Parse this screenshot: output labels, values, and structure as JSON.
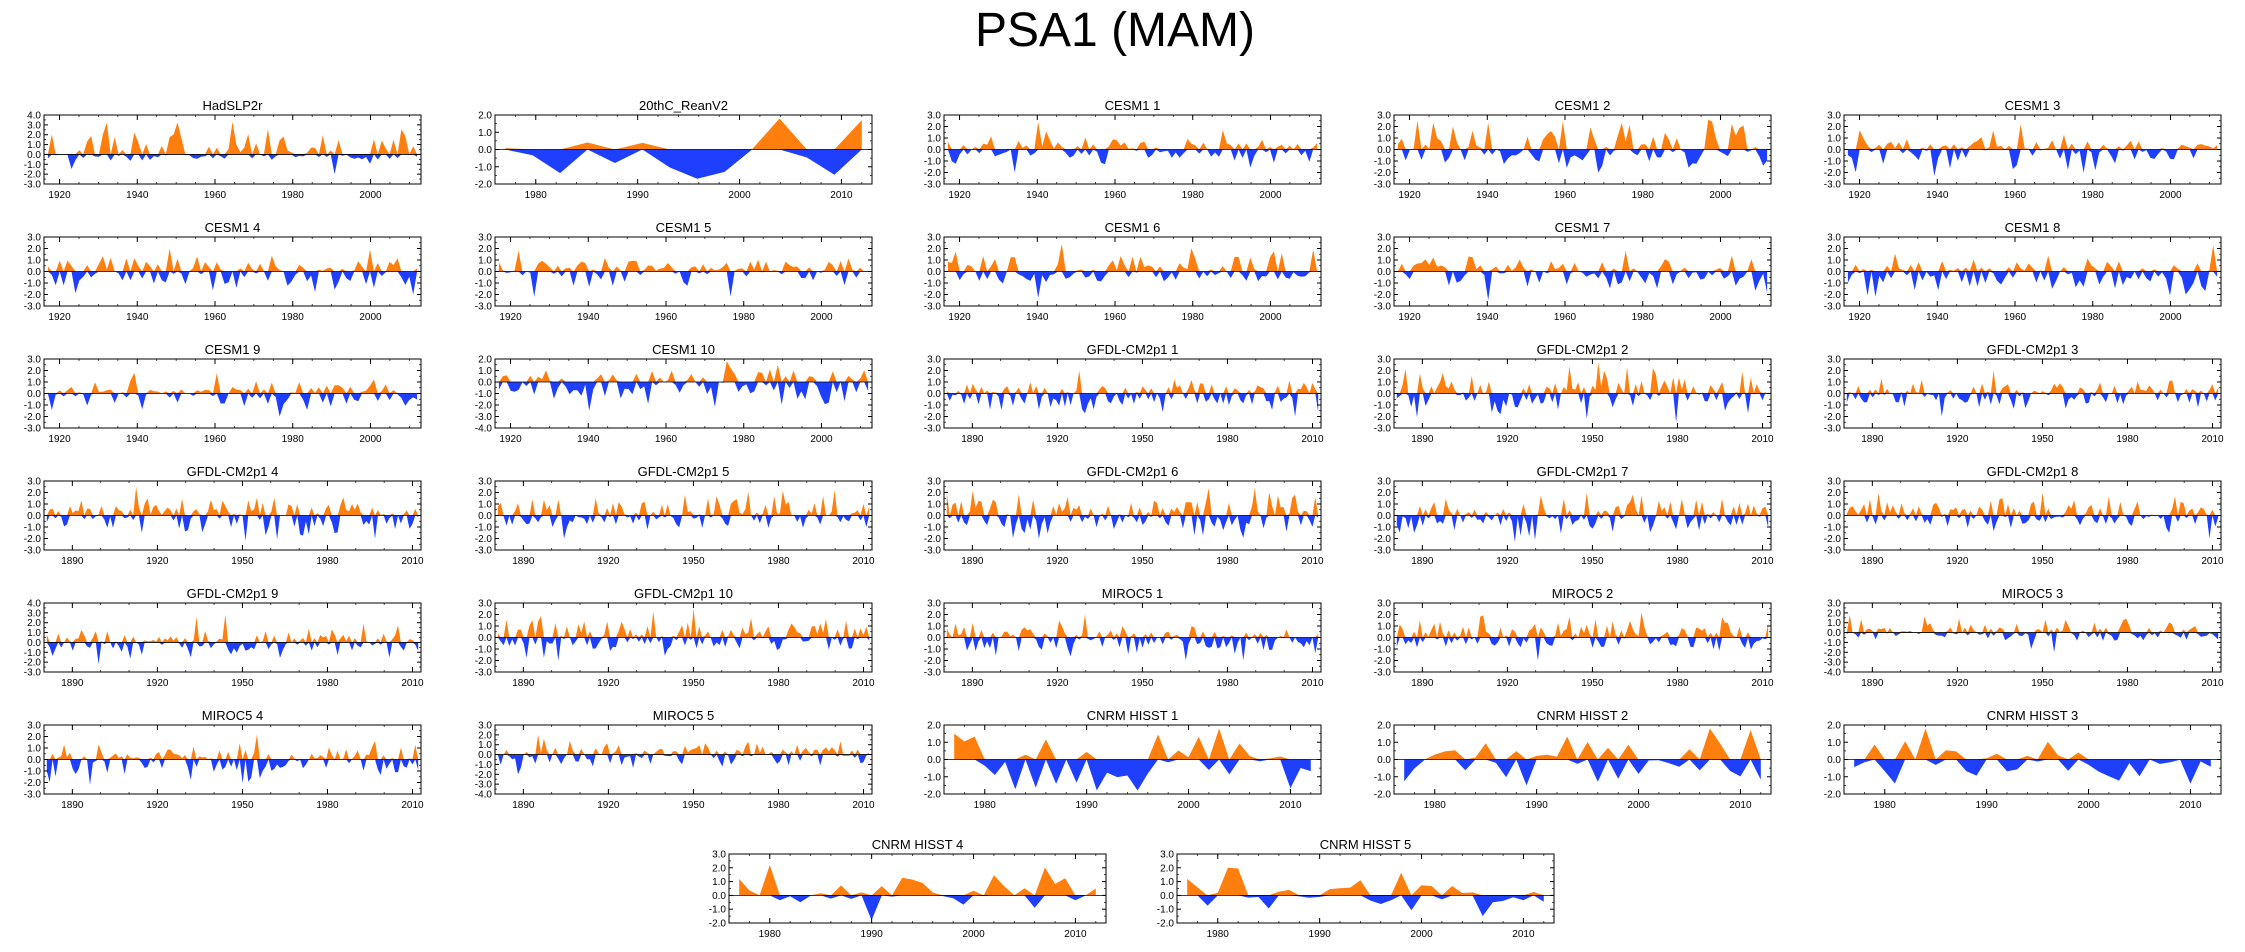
{
  "figure": {
    "title": "PSA1 (MAM)",
    "pos_color": "#ff7f0e",
    "neg_color": "#1f3fff"
  },
  "chart_data": [
    {
      "type": "area",
      "title": "HadSLP2r",
      "x_range": [
        1916,
        2013
      ],
      "x_ticks": [
        1920,
        1940,
        1960,
        1980,
        2000
      ],
      "ylim": [
        -3,
        4
      ],
      "y_ticks": [
        "4.0",
        "3.0",
        "2.0",
        "1.0",
        "0.0",
        "-1.0",
        "-2.0",
        "-3.0"
      ],
      "peak_high": 3.3,
      "peak_low": -2.0,
      "n": 95
    },
    {
      "type": "area",
      "title": "20thC_ReanV2",
      "x_range": [
        1976,
        2013
      ],
      "x_ticks": [
        1980,
        1990,
        2000,
        2010
      ],
      "ylim": [
        -2,
        2
      ],
      "y_ticks": [
        "2.0",
        "1.0",
        "0.0",
        "-1.0",
        "-2.0"
      ],
      "peak_high": 1.8,
      "peak_low": -1.7,
      "n": 14
    },
    {
      "type": "area",
      "title": "CESM1 1",
      "x_range": [
        1916,
        2013
      ],
      "x_ticks": [
        1920,
        1940,
        1960,
        1980,
        2000
      ],
      "ylim": [
        -3,
        3
      ],
      "y_ticks": [
        "3.0",
        "2.0",
        "1.0",
        "0.0",
        "-1.0",
        "-2.0",
        "-3.0"
      ],
      "peak_high": 2.4,
      "peak_low": -2.0,
      "n": 95
    },
    {
      "type": "area",
      "title": "CESM1 2",
      "x_range": [
        1916,
        2013
      ],
      "x_ticks": [
        1920,
        1940,
        1960,
        1980,
        2000
      ],
      "ylim": [
        -3,
        3
      ],
      "y_ticks": [
        "3.0",
        "2.0",
        "1.0",
        "0.0",
        "-1.0",
        "-2.0",
        "-3.0"
      ],
      "peak_high": 2.6,
      "peak_low": -2.0,
      "n": 95
    },
    {
      "type": "area",
      "title": "CESM1 3",
      "x_range": [
        1916,
        2013
      ],
      "x_ticks": [
        1920,
        1940,
        1960,
        1980,
        2000
      ],
      "ylim": [
        -3,
        3
      ],
      "y_ticks": [
        "3.0",
        "2.0",
        "1.0",
        "0.0",
        "-1.0",
        "-2.0",
        "-3.0"
      ],
      "peak_high": 2.2,
      "peak_low": -2.3,
      "n": 95
    },
    {
      "type": "area",
      "title": "CESM1 4",
      "x_range": [
        1916,
        2013
      ],
      "x_ticks": [
        1920,
        1940,
        1960,
        1980,
        2000
      ],
      "ylim": [
        -3,
        3
      ],
      "y_ticks": [
        "3.0",
        "2.0",
        "1.0",
        "0.0",
        "-1.0",
        "-2.0",
        "-3.0"
      ],
      "peak_high": 2.0,
      "peak_low": -2.0,
      "n": 95
    },
    {
      "type": "area",
      "title": "CESM1 5",
      "x_range": [
        1916,
        2013
      ],
      "x_ticks": [
        1920,
        1940,
        1960,
        1980,
        2000
      ],
      "ylim": [
        -3,
        3
      ],
      "y_ticks": [
        "3.0",
        "2.0",
        "1.0",
        "0.0",
        "-1.0",
        "-2.0",
        "-3.0"
      ],
      "peak_high": 1.8,
      "peak_low": -2.2,
      "n": 95
    },
    {
      "type": "area",
      "title": "CESM1 6",
      "x_range": [
        1916,
        2013
      ],
      "x_ticks": [
        1920,
        1940,
        1960,
        1980,
        2000
      ],
      "ylim": [
        -3,
        3
      ],
      "y_ticks": [
        "3.0",
        "2.0",
        "1.0",
        "0.0",
        "-1.0",
        "-2.0",
        "-3.0"
      ],
      "peak_high": 2.4,
      "peak_low": -2.3,
      "n": 95
    },
    {
      "type": "area",
      "title": "CESM1 7",
      "x_range": [
        1916,
        2013
      ],
      "x_ticks": [
        1920,
        1940,
        1960,
        1980,
        2000
      ],
      "ylim": [
        -3,
        3
      ],
      "y_ticks": [
        "3.0",
        "2.0",
        "1.0",
        "0.0",
        "-1.0",
        "-2.0",
        "-3.0"
      ],
      "peak_high": 1.8,
      "peak_low": -2.5,
      "n": 95
    },
    {
      "type": "area",
      "title": "CESM1 8",
      "x_range": [
        1916,
        2013
      ],
      "x_ticks": [
        1920,
        1940,
        1960,
        1980,
        2000
      ],
      "ylim": [
        -3,
        3
      ],
      "y_ticks": [
        "3.0",
        "2.0",
        "1.0",
        "0.0",
        "-1.0",
        "-2.0",
        "-3.0"
      ],
      "peak_high": 2.3,
      "peak_low": -2.2,
      "n": 95
    },
    {
      "type": "area",
      "title": "CESM1 9",
      "x_range": [
        1916,
        2013
      ],
      "x_ticks": [
        1920,
        1940,
        1960,
        1980,
        2000
      ],
      "ylim": [
        -3,
        3
      ],
      "y_ticks": [
        "3.0",
        "2.0",
        "1.0",
        "0.0",
        "-1.0",
        "-2.0",
        "-3.0"
      ],
      "peak_high": 1.8,
      "peak_low": -2.0,
      "n": 95
    },
    {
      "type": "area",
      "title": "CESM1 10",
      "x_range": [
        1916,
        2013
      ],
      "x_ticks": [
        1920,
        1940,
        1960,
        1980,
        2000
      ],
      "ylim": [
        -4,
        2
      ],
      "y_ticks": [
        "2.0",
        "1.0",
        "0.0",
        "-1.0",
        "-2.0",
        "-3.0",
        "-4.0"
      ],
      "peak_high": 1.8,
      "peak_low": -2.5,
      "n": 95
    },
    {
      "type": "area",
      "title": "GFDL-CM2p1 1",
      "x_range": [
        1880,
        2013
      ],
      "x_ticks": [
        1890,
        1920,
        1950,
        1980,
        2010
      ],
      "ylim": [
        -3,
        3
      ],
      "y_ticks": [
        "3.0",
        "2.0",
        "1.0",
        "0.0",
        "-1.0",
        "-2.0",
        "-3.0"
      ],
      "peak_high": 2.0,
      "peak_low": -2.0,
      "n": 130
    },
    {
      "type": "area",
      "title": "GFDL-CM2p1 2",
      "x_range": [
        1880,
        2013
      ],
      "x_ticks": [
        1890,
        1920,
        1950,
        1980,
        2010
      ],
      "ylim": [
        -3,
        3
      ],
      "y_ticks": [
        "3.0",
        "2.0",
        "1.0",
        "0.0",
        "-1.0",
        "-2.0",
        "-3.0"
      ],
      "peak_high": 2.7,
      "peak_low": -2.5,
      "n": 130
    },
    {
      "type": "area",
      "title": "GFDL-CM2p1 3",
      "x_range": [
        1880,
        2013
      ],
      "x_ticks": [
        1890,
        1920,
        1950,
        1980,
        2010
      ],
      "ylim": [
        -3,
        3
      ],
      "y_ticks": [
        "3.0",
        "2.0",
        "1.0",
        "0.0",
        "-1.0",
        "-2.0",
        "-3.0"
      ],
      "peak_high": 2.0,
      "peak_low": -2.0,
      "n": 130
    },
    {
      "type": "area",
      "title": "GFDL-CM2p1 4",
      "x_range": [
        1880,
        2013
      ],
      "x_ticks": [
        1890,
        1920,
        1950,
        1980,
        2010
      ],
      "ylim": [
        -3,
        3
      ],
      "y_ticks": [
        "3.0",
        "2.0",
        "1.0",
        "0.0",
        "-1.0",
        "-2.0",
        "-3.0"
      ],
      "peak_high": 2.5,
      "peak_low": -2.2,
      "n": 130
    },
    {
      "type": "area",
      "title": "GFDL-CM2p1 5",
      "x_range": [
        1880,
        2013
      ],
      "x_ticks": [
        1890,
        1920,
        1950,
        1980,
        2010
      ],
      "ylim": [
        -3,
        3
      ],
      "y_ticks": [
        "3.0",
        "2.0",
        "1.0",
        "0.0",
        "-1.0",
        "-2.0",
        "-3.0"
      ],
      "peak_high": 2.2,
      "peak_low": -2.0,
      "n": 130
    },
    {
      "type": "area",
      "title": "GFDL-CM2p1 6",
      "x_range": [
        1880,
        2013
      ],
      "x_ticks": [
        1890,
        1920,
        1950,
        1980,
        2010
      ],
      "ylim": [
        -3,
        3
      ],
      "y_ticks": [
        "3.0",
        "2.0",
        "1.0",
        "0.0",
        "-1.0",
        "-2.0",
        "-3.0"
      ],
      "peak_high": 2.4,
      "peak_low": -2.0,
      "n": 130
    },
    {
      "type": "area",
      "title": "GFDL-CM2p1 7",
      "x_range": [
        1880,
        2013
      ],
      "x_ticks": [
        1890,
        1920,
        1950,
        1980,
        2010
      ],
      "ylim": [
        -3,
        3
      ],
      "y_ticks": [
        "3.0",
        "2.0",
        "1.0",
        "0.0",
        "-1.0",
        "-2.0",
        "-3.0"
      ],
      "peak_high": 2.0,
      "peak_low": -2.3,
      "n": 130
    },
    {
      "type": "area",
      "title": "GFDL-CM2p1 8",
      "x_range": [
        1880,
        2013
      ],
      "x_ticks": [
        1890,
        1920,
        1950,
        1980,
        2010
      ],
      "ylim": [
        -3,
        3
      ],
      "y_ticks": [
        "3.0",
        "2.0",
        "1.0",
        "0.0",
        "-1.0",
        "-2.0",
        "-3.0"
      ],
      "peak_high": 2.0,
      "peak_low": -2.0,
      "n": 130
    },
    {
      "type": "area",
      "title": "GFDL-CM2p1 9",
      "x_range": [
        1880,
        2013
      ],
      "x_ticks": [
        1890,
        1920,
        1950,
        1980,
        2010
      ],
      "ylim": [
        -3,
        4
      ],
      "y_ticks": [
        "4.0",
        "3.0",
        "2.0",
        "1.0",
        "0.0",
        "-1.0",
        "-2.0",
        "-3.0"
      ],
      "peak_high": 2.8,
      "peak_low": -2.2,
      "n": 130
    },
    {
      "type": "area",
      "title": "GFDL-CM2p1 10",
      "x_range": [
        1880,
        2013
      ],
      "x_ticks": [
        1890,
        1920,
        1950,
        1980,
        2010
      ],
      "ylim": [
        -3,
        3
      ],
      "y_ticks": [
        "3.0",
        "2.0",
        "1.0",
        "0.0",
        "-1.0",
        "-2.0",
        "-3.0"
      ],
      "peak_high": 2.5,
      "peak_low": -2.0,
      "n": 130
    },
    {
      "type": "area",
      "title": "MIROC5 1",
      "x_range": [
        1880,
        2013
      ],
      "x_ticks": [
        1890,
        1920,
        1950,
        1980,
        2010
      ],
      "ylim": [
        -3,
        3
      ],
      "y_ticks": [
        "3.0",
        "2.0",
        "1.0",
        "0.0",
        "-1.0",
        "-2.0",
        "-3.0"
      ],
      "peak_high": 2.0,
      "peak_low": -2.0,
      "n": 130
    },
    {
      "type": "area",
      "title": "MIROC5 2",
      "x_range": [
        1880,
        2013
      ],
      "x_ticks": [
        1890,
        1920,
        1950,
        1980,
        2010
      ],
      "ylim": [
        -3,
        3
      ],
      "y_ticks": [
        "3.0",
        "2.0",
        "1.0",
        "0.0",
        "-1.0",
        "-2.0",
        "-3.0"
      ],
      "peak_high": 2.2,
      "peak_low": -2.0,
      "n": 130
    },
    {
      "type": "area",
      "title": "MIROC5 3",
      "x_range": [
        1880,
        2013
      ],
      "x_ticks": [
        1890,
        1920,
        1950,
        1980,
        2010
      ],
      "ylim": [
        -4,
        3
      ],
      "y_ticks": [
        "3.0",
        "2.0",
        "1.0",
        "0.0",
        "-1.0",
        "-2.0",
        "-3.0",
        "-4.0"
      ],
      "peak_high": 1.8,
      "peak_low": -2.0,
      "n": 130
    },
    {
      "type": "area",
      "title": "MIROC5 4",
      "x_range": [
        1880,
        2013
      ],
      "x_ticks": [
        1890,
        1920,
        1950,
        1980,
        2010
      ],
      "ylim": [
        -3,
        3
      ],
      "y_ticks": [
        "3.0",
        "2.0",
        "1.0",
        "0.0",
        "-1.0",
        "-2.0",
        "-3.0"
      ],
      "peak_high": 2.2,
      "peak_low": -2.2,
      "n": 130
    },
    {
      "type": "area",
      "title": "MIROC5 5",
      "x_range": [
        1880,
        2013
      ],
      "x_ticks": [
        1890,
        1920,
        1950,
        1980,
        2010
      ],
      "ylim": [
        -4,
        3
      ],
      "y_ticks": [
        "3.0",
        "2.0",
        "1.0",
        "0.0",
        "-1.0",
        "-2.0",
        "-3.0",
        "-4.0"
      ],
      "peak_high": 2.0,
      "peak_low": -2.0,
      "n": 130
    },
    {
      "type": "area",
      "title": "CNRM HISST 1",
      "x_range": [
        1976,
        2013
      ],
      "x_ticks": [
        1980,
        1990,
        2000,
        2010
      ],
      "ylim": [
        -2,
        2
      ],
      "y_ticks": [
        "2.0",
        "1.0",
        "0.0",
        "-1.0",
        "-2.0"
      ],
      "peak_high": 1.8,
      "peak_low": -1.8,
      "n": 36
    },
    {
      "type": "area",
      "title": "CNRM HISST 2",
      "x_range": [
        1976,
        2013
      ],
      "x_ticks": [
        1980,
        1990,
        2000,
        2010
      ],
      "ylim": [
        -2,
        2
      ],
      "y_ticks": [
        "2.0",
        "1.0",
        "0.0",
        "-1.0",
        "-2.0"
      ],
      "peak_high": 1.8,
      "peak_low": -1.5,
      "n": 36
    },
    {
      "type": "area",
      "title": "CNRM HISST 3",
      "x_range": [
        1976,
        2013
      ],
      "x_ticks": [
        1980,
        1990,
        2000,
        2010
      ],
      "ylim": [
        -2,
        2
      ],
      "y_ticks": [
        "2.0",
        "1.0",
        "0.0",
        "-1.0",
        "-2.0"
      ],
      "peak_high": 1.8,
      "peak_low": -1.4,
      "n": 36
    },
    {
      "type": "area",
      "title": "CNRM HISST 4",
      "x_range": [
        1976,
        2013
      ],
      "x_ticks": [
        1980,
        1990,
        2000,
        2010
      ],
      "ylim": [
        -2,
        3
      ],
      "y_ticks": [
        "3.0",
        "2.0",
        "1.0",
        "0.0",
        "-1.0",
        "-2.0"
      ],
      "peak_high": 2.2,
      "peak_low": -1.8,
      "n": 36
    },
    {
      "type": "area",
      "title": "CNRM HISST 5",
      "x_range": [
        1976,
        2013
      ],
      "x_ticks": [
        1980,
        1990,
        2000,
        2010
      ],
      "ylim": [
        -2,
        3
      ],
      "y_ticks": [
        "3.0",
        "2.0",
        "1.0",
        "0.0",
        "-1.0",
        "-2.0"
      ],
      "peak_high": 2.0,
      "peak_low": -1.5,
      "n": 36
    }
  ]
}
